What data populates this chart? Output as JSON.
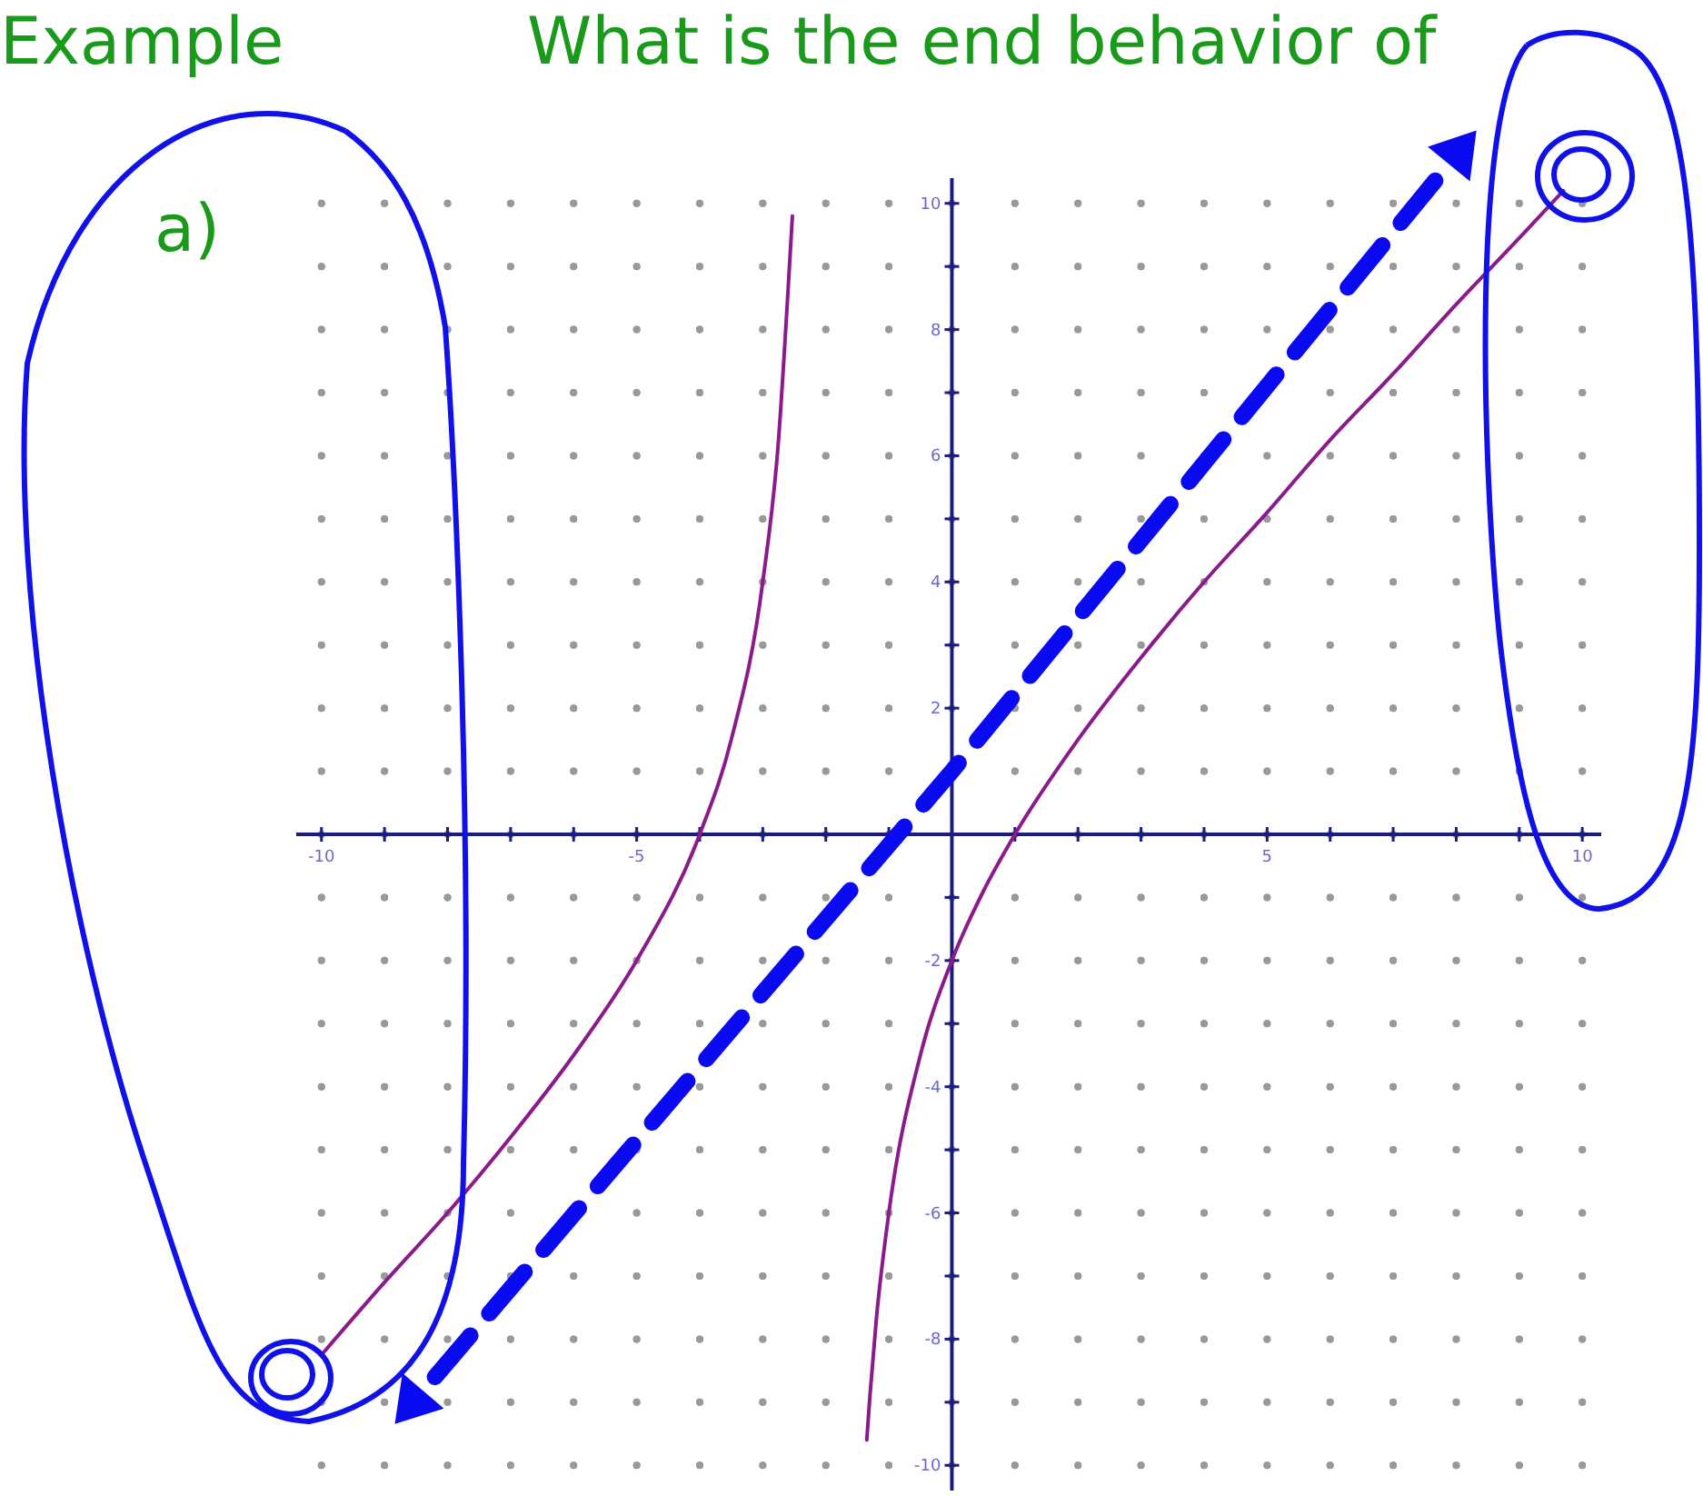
{
  "chart_data": {
    "type": "line",
    "title": "What is the end behavior of",
    "annotations": [
      "Example",
      "a)"
    ],
    "xlim": [
      -10.4,
      10.3
    ],
    "ylim": [
      -10.4,
      10.4
    ],
    "xticks": [
      -10,
      {
        "value": -9,
        "label": null
      },
      {
        "value": -8,
        "label": null
      },
      {
        "value": -7,
        "label": null
      },
      {
        "value": -6,
        "label": null
      },
      -5,
      {
        "value": -4,
        "label": null
      },
      {
        "value": -3,
        "label": null
      },
      {
        "value": -2,
        "label": null
      },
      {
        "value": -1,
        "label": null
      },
      {
        "value": 1,
        "label": null
      },
      {
        "value": 2,
        "label": null
      },
      {
        "value": 3,
        "label": null
      },
      {
        "value": 4,
        "label": null
      },
      5,
      {
        "value": 6,
        "label": null
      },
      {
        "value": 7,
        "label": null
      },
      {
        "value": 8,
        "label": null
      },
      {
        "value": 9,
        "label": null
      },
      10
    ],
    "yticks": [
      -10,
      {
        "value": -9,
        "label": null
      },
      -8,
      {
        "value": -7,
        "label": null
      },
      -6,
      {
        "value": -5,
        "label": null
      },
      -4,
      {
        "value": -3,
        "label": null
      },
      -2,
      {
        "value": -1,
        "label": null
      },
      {
        "value": 1,
        "label": null
      },
      2,
      {
        "value": 3,
        "label": null
      },
      4,
      {
        "value": 5,
        "label": null
      },
      6,
      {
        "value": 7,
        "label": null
      },
      8,
      {
        "value": 9,
        "label": null
      },
      10
    ],
    "grid": true,
    "series": [
      {
        "color": "#8b1a8b",
        "x": [
          -10,
          -9,
          -8,
          -7,
          -6,
          -5,
          -4,
          -3.5,
          -3,
          -2.75,
          -2.6,
          -2.53
        ],
        "values": [
          -8.25,
          -7.1,
          -6,
          -4.8,
          -3.5,
          -2,
          0,
          1.5,
          4,
          6.25,
          8.6,
          9.8
        ]
      },
      {
        "color": "#0a0af0",
        "line_style": "dashed",
        "x": [
          -8.2,
          0,
          7.7
        ],
        "values": [
          -8.6,
          1.0,
          10.4
        ]
      },
      {
        "color": "#8b1a8b",
        "x": [
          -1.35,
          -1.3,
          -1.2,
          -1,
          -0.5,
          0,
          0.5,
          1,
          2,
          3,
          4,
          5,
          6,
          7,
          8,
          9,
          9.7
        ],
        "values": [
          -9.6,
          -8.9,
          -7.7,
          -6,
          -3.5,
          -2,
          -0.9,
          0,
          1.5,
          2.8,
          4,
          5.1,
          6.25,
          7.3,
          8.4,
          9.45,
          10.2
        ]
      }
    ]
  }
}
